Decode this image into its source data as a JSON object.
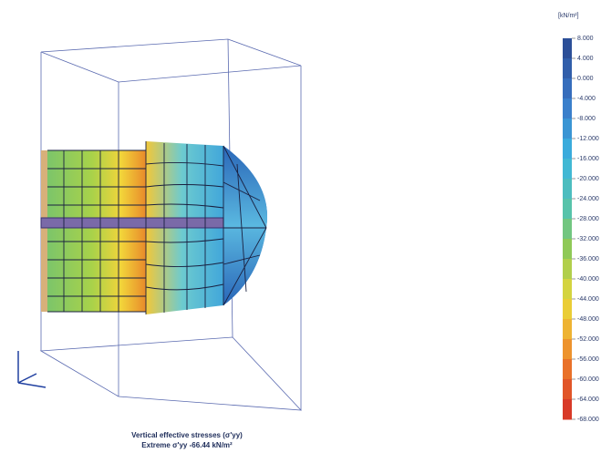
{
  "legend": {
    "unit": "[kN/m²]",
    "labels": [
      "8.000",
      "4.000",
      "0.000",
      "-4.000",
      "-8.000",
      "-12.000",
      "-16.000",
      "-20.000",
      "-24.000",
      "-28.000",
      "-32.000",
      "-36.000",
      "-40.000",
      "-44.000",
      "-48.000",
      "-52.000",
      "-56.000",
      "-60.000",
      "-64.000",
      "-68.000"
    ]
  },
  "caption": {
    "title": "Vertical effective stresses (σ'yy)",
    "extreme": "Extreme σ'yy -66.44 kN/m²"
  }
}
